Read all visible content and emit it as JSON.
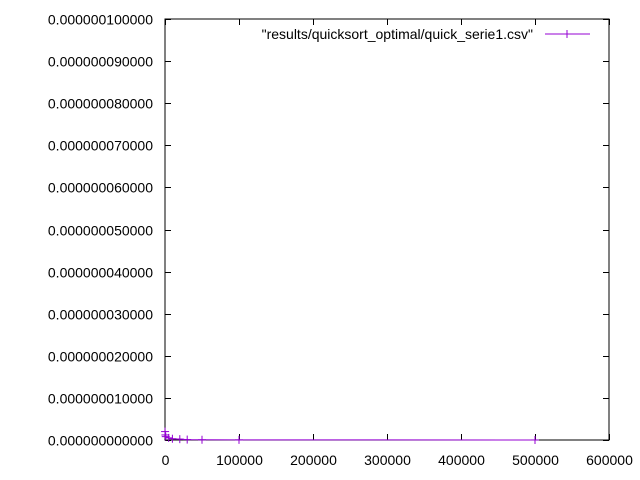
{
  "chart_data": {
    "type": "line",
    "title": "",
    "xlabel": "",
    "ylabel": "",
    "xlim": [
      0,
      600000
    ],
    "ylim": [
      0,
      1e-07
    ],
    "x_ticks": [
      "0",
      "100000",
      "200000",
      "300000",
      "400000",
      "500000",
      "600000"
    ],
    "y_ticks": [
      "0.000000000000",
      "0.000000010000",
      "0.000000020000",
      "0.000000030000",
      "0.000000040000",
      "0.000000050000",
      "0.000000060000",
      "0.000000070000",
      "0.000000080000",
      "0.000000090000",
      "0.000000100000"
    ],
    "grid": false,
    "legend_position": "top-right",
    "series": [
      {
        "name": "\"results/quicksort_optimal/quick_serie1.csv\"",
        "color": "#9400d3",
        "marker": "plus",
        "x": [
          100,
          500,
          1000,
          5000,
          10000,
          20000,
          30000,
          50000,
          100000,
          500000
        ],
        "y": [
          2e-09,
          1.2e-09,
          8e-10,
          5e-10,
          3e-10,
          2e-10,
          1e-10,
          5e-11,
          3e-11,
          1e-11
        ]
      }
    ]
  }
}
